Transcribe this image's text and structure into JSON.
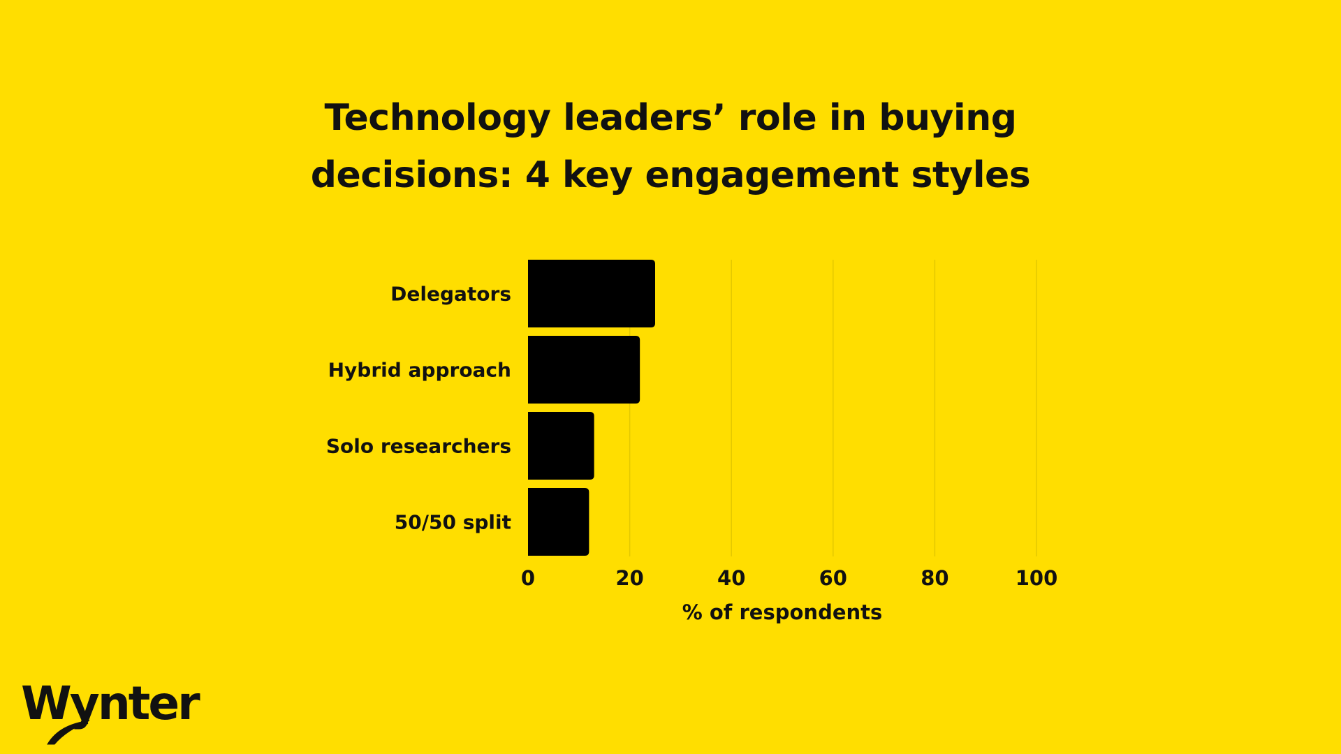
{
  "colors": {
    "background": "#FFDE00",
    "bar": "#000000",
    "text": "#111111",
    "grid": "#E3C800"
  },
  "title_lines": [
    "Technology leaders’ role in buying",
    "decisions: 4 key engagement styles"
  ],
  "logo": {
    "text": "Wynter"
  },
  "chart_data": {
    "type": "bar",
    "orientation": "horizontal",
    "title": "Technology leaders’ role in buying decisions: 4 key engagement styles",
    "categories": [
      "Delegators",
      "Hybrid approach",
      "Solo researchers",
      "50/50 split"
    ],
    "values": [
      25,
      22,
      13,
      12
    ],
    "xlabel": "% of respondents",
    "ylabel": "",
    "xlim": [
      0,
      100
    ],
    "xticks": [
      0,
      20,
      40,
      60,
      80,
      100
    ],
    "grid": true,
    "legend": "none"
  }
}
